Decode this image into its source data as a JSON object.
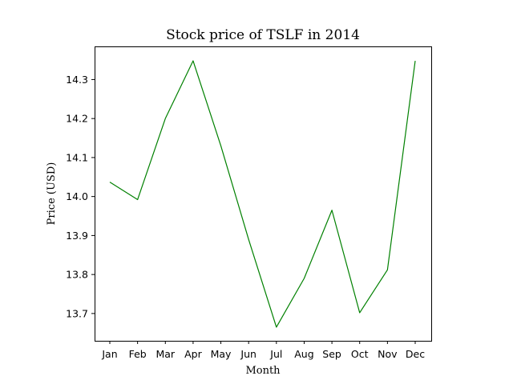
{
  "chart_data": {
    "type": "line",
    "title": "Stock price of TSLF in 2014",
    "xlabel": "Month",
    "ylabel": "Price (USD)",
    "categories": [
      "Jan",
      "Feb",
      "Mar",
      "Apr",
      "May",
      "Jun",
      "Jul",
      "Aug",
      "Sep",
      "Oct",
      "Nov",
      "Dec"
    ],
    "series": [
      {
        "values": [
          14.037,
          13.992,
          14.2,
          14.348,
          14.13,
          13.89,
          13.665,
          13.79,
          13.965,
          13.702,
          13.812,
          14.348
        ],
        "color": "#008000"
      }
    ],
    "ylim": [
      13.63,
      14.385
    ],
    "yticks": [
      "13.7",
      "13.8",
      "13.9",
      "14.0",
      "14.1",
      "14.2",
      "14.3"
    ],
    "grid": false,
    "legend": "none"
  }
}
